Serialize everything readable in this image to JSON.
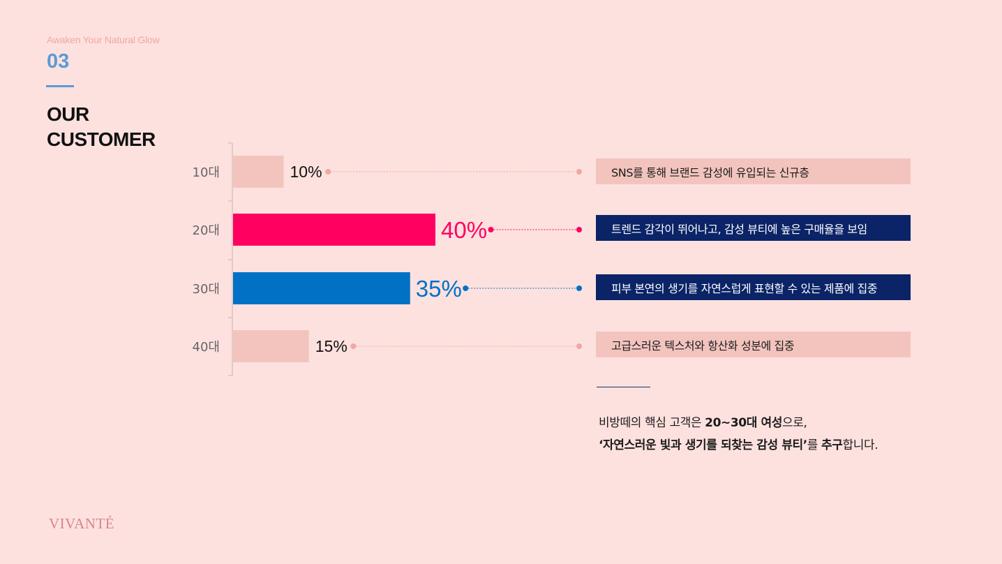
{
  "header": {
    "tagline": "Awaken Your Natural Glow",
    "section_number": "03",
    "title_line1": "OUR",
    "title_line2": "CUSTOMER"
  },
  "chart_data": {
    "type": "bar",
    "orientation": "horizontal",
    "categories": [
      "10대",
      "20대",
      "30대",
      "40대"
    ],
    "values": [
      10,
      40,
      35,
      15
    ],
    "value_labels": [
      "10%",
      "40%",
      "35%",
      "15%"
    ],
    "highlight": [
      false,
      true,
      true,
      false
    ],
    "colors": [
      "#f3c4be",
      "#ff0060",
      "#0071c5",
      "#f3c4be"
    ],
    "label_colors": [
      "#111111",
      "#ff0060",
      "#0071c5",
      "#111111"
    ],
    "xlim": [
      0,
      40
    ],
    "annotations": [
      "SNS를 통해 브랜드 감성에 유입되는 신규층",
      "트렌드 감각이 뛰어나고, 감성 뷰티에 높은 구매율을 보임",
      "피부 본연의 생기를 자연스럽게 표현할 수 있는 제품에 집중",
      "고급스러운 텍스처와 항산화 성분에 집중"
    ]
  },
  "summary": {
    "line1_a": "비방떼의 핵심 고객은 ",
    "line1_b": "20~30대 여성",
    "line1_c": "으로,",
    "line2_a": "‘자연스러운 빛과 생기를 되찾는 감성 뷰티’",
    "line2_b": "를 ",
    "line2_c": "추구",
    "line2_d": "합니다."
  },
  "logo": "VIVANTÉ"
}
